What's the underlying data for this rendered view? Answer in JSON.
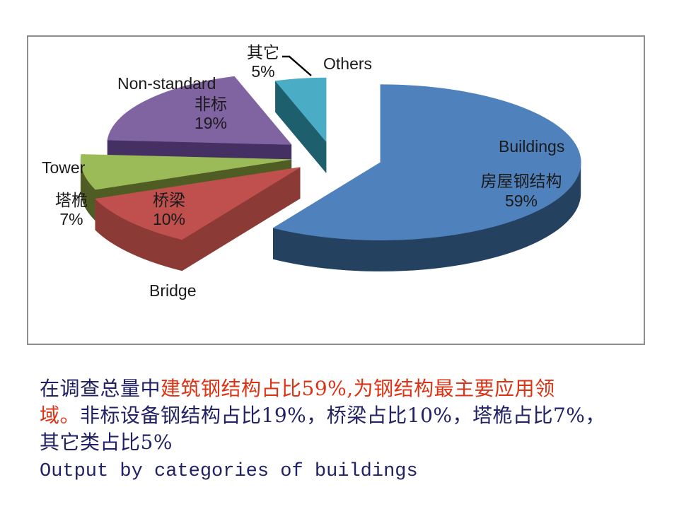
{
  "chart_data": {
    "type": "pie",
    "style": "3d-exploded",
    "start_angle_deg": 0,
    "clockwise": true,
    "legend": "none",
    "series": [
      {
        "label_en": "Buildings",
        "label_cn": "房屋钢结构",
        "value": 59,
        "pct": "59%",
        "color": "#4F81BD",
        "side_color": "#24415F"
      },
      {
        "label_en": "Bridge",
        "label_cn": "桥梁",
        "value": 10,
        "pct": "10%",
        "color": "#C0504D",
        "side_color": "#8C3A36"
      },
      {
        "label_en": "Tower",
        "label_cn": "塔桅",
        "value": 7,
        "pct": "7%",
        "color": "#9BBB59",
        "side_color": "#4F5D24"
      },
      {
        "label_en": "Non-standard",
        "label_cn": "非标",
        "value": 19,
        "pct": "19%",
        "color": "#8064A2",
        "side_color": "#453063"
      },
      {
        "label_en": "Others",
        "label_cn": "其它",
        "value": 5,
        "pct": "5%",
        "color": "#4BACC6",
        "side_color": "#1E5F6E"
      }
    ]
  },
  "body": {
    "lines": [
      {
        "segments": [
          {
            "text": "在调查总量中",
            "color": "navy"
          },
          {
            "text": "建筑钢结构占比59%,为钢结构最主要应用领",
            "color": "red"
          }
        ]
      },
      {
        "segments": [
          {
            "text": "域。",
            "color": "red"
          },
          {
            "text": "非标设备钢结构占比19%，桥梁占比10%，塔桅占比7%，",
            "color": "navy"
          }
        ]
      },
      {
        "segments": [
          {
            "text": "其它类占比5%",
            "color": "navy"
          }
        ]
      },
      {
        "segments": [
          {
            "text": "Output by categories of buildings",
            "color": "navy",
            "mono": true
          }
        ]
      }
    ]
  },
  "colors": {
    "navy": "#212266",
    "red": "#DE3214",
    "chart_label": "#1A1A1A",
    "frame_border": "#8E8E8E",
    "leader_line": "#000000"
  }
}
